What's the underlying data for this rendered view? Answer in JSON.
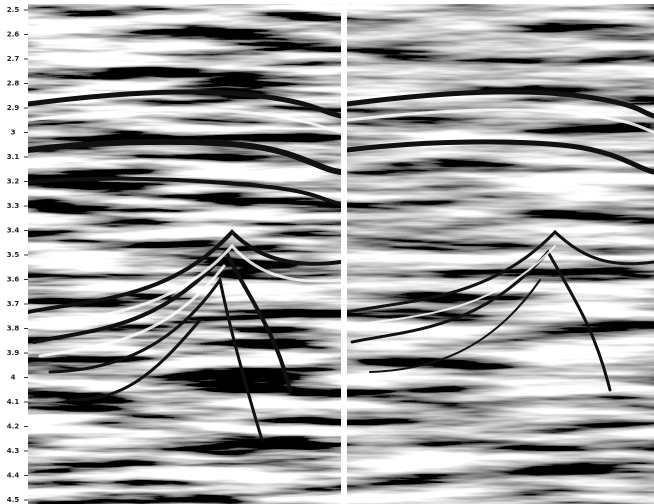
{
  "axis": {
    "ylim": [
      2.5,
      4.5
    ],
    "yticks": [
      2.5,
      2.6,
      2.7,
      2.8,
      2.9,
      3,
      3.1,
      3.2,
      3.3,
      3.4,
      3.5,
      3.6,
      3.7,
      3.8,
      3.9,
      4,
      4.1,
      4.2,
      4.3,
      4.4,
      4.5
    ]
  }
}
